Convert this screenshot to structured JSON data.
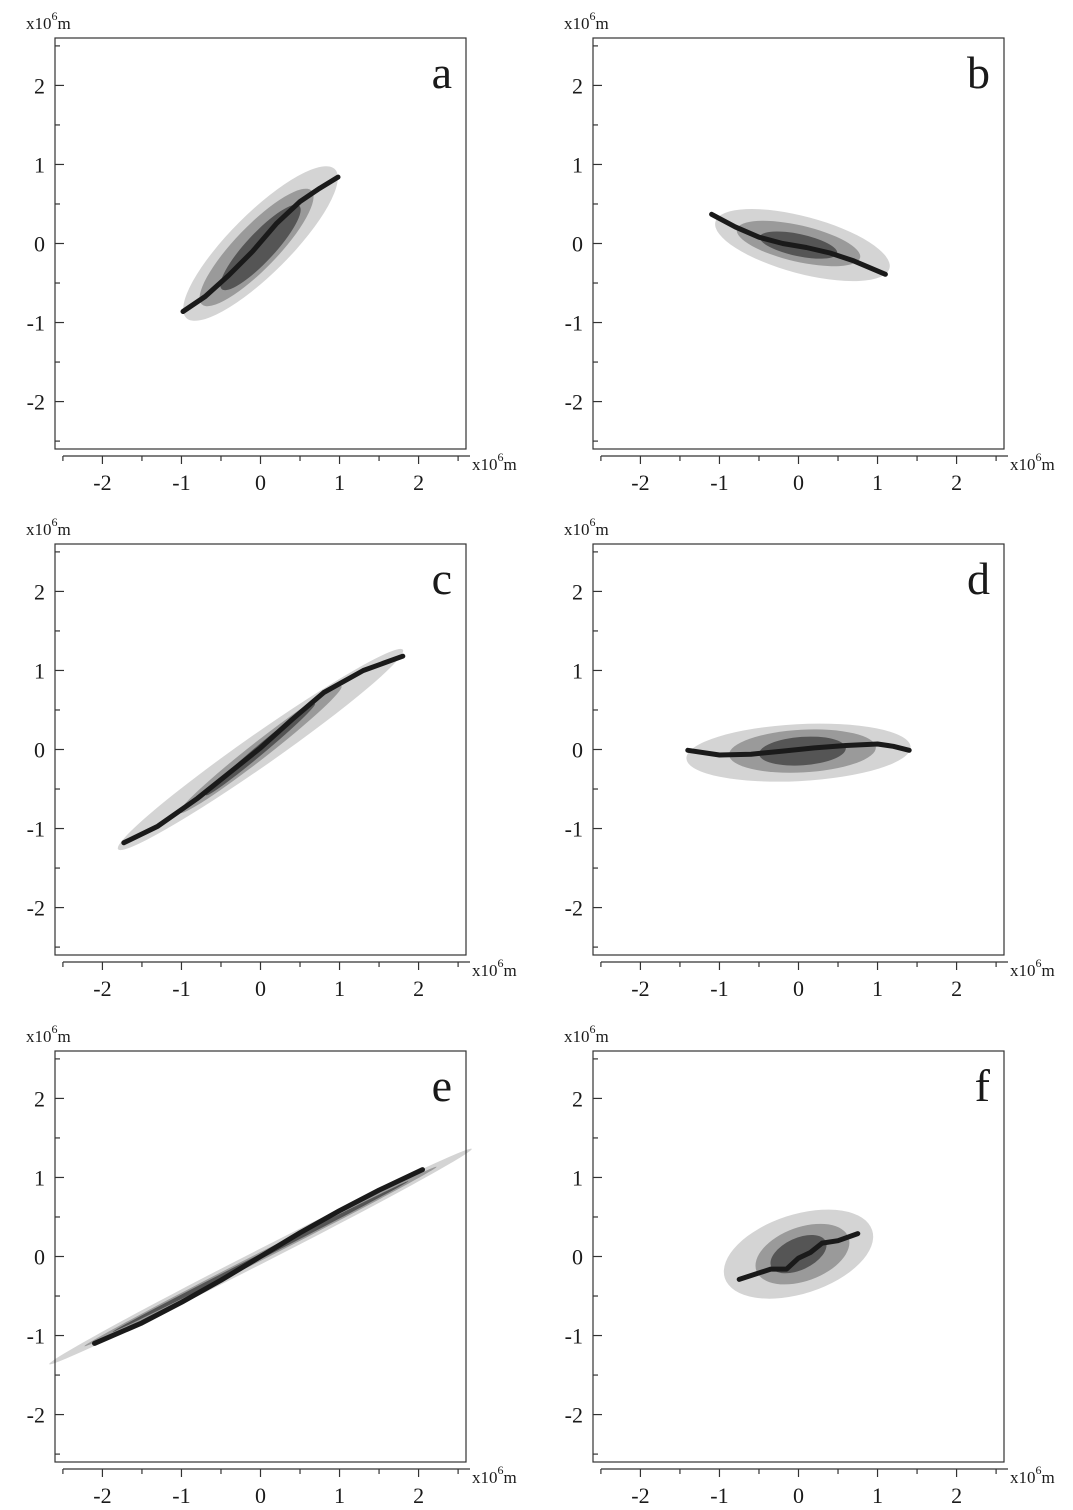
{
  "figure": {
    "x_unit": {
      "prefix": "x10",
      "exponent": "6",
      "suffix": "m"
    },
    "y_unit": {
      "prefix": "x10",
      "exponent": "6",
      "suffix": "m"
    }
  },
  "colors": {
    "background": "#ffffff",
    "frame": "#333333",
    "level_outer": "#d4d4d4",
    "level_middle": "#9a9a9a",
    "level_inner": "#555555",
    "curve": "#1a1a1a"
  },
  "chart_data": [
    {
      "type": "contour",
      "panel": "a",
      "xlim": [
        -2.6,
        2.6
      ],
      "ylim": [
        -2.6,
        2.6
      ],
      "x_ticks": [
        -2,
        -1,
        0,
        1,
        2
      ],
      "y_ticks": [
        -2,
        -1,
        0,
        1,
        2
      ],
      "x_tick_labels": [
        "-2",
        "-1",
        "0",
        "1",
        "2"
      ],
      "y_tick_labels": [
        "-2",
        "-1",
        "0",
        "1",
        "2"
      ],
      "grid": false,
      "contours": [
        {
          "level": "outer",
          "center": [
            0,
            0
          ],
          "semi_major": 1.33,
          "semi_minor": 0.38,
          "angle_deg": 45
        },
        {
          "level": "middle",
          "center": [
            -0.05,
            -0.05
          ],
          "semi_major": 1.0,
          "semi_minor": 0.27,
          "angle_deg": 46
        },
        {
          "level": "inner",
          "center": [
            0,
            -0.05
          ],
          "semi_major": 0.72,
          "semi_minor": 0.18,
          "angle_deg": 47
        }
      ],
      "curve": {
        "x": [
          -0.98,
          -0.7,
          -0.4,
          -0.1,
          0.2,
          0.5,
          0.75,
          0.98
        ],
        "y": [
          -0.86,
          -0.67,
          -0.4,
          -0.1,
          0.25,
          0.53,
          0.7,
          0.84
        ]
      }
    },
    {
      "type": "contour",
      "panel": "b",
      "xlim": [
        -2.6,
        2.6
      ],
      "ylim": [
        -2.6,
        2.6
      ],
      "x_ticks": [
        -2,
        -1,
        0,
        1,
        2
      ],
      "y_ticks": [
        -2,
        -1,
        0,
        1,
        2
      ],
      "x_tick_labels": [
        "-2",
        "-1",
        "0",
        "1",
        "2"
      ],
      "y_tick_labels": [
        "-2",
        "-1",
        "0",
        "1",
        "2"
      ],
      "grid": false,
      "contours": [
        {
          "level": "outer",
          "center": [
            0.05,
            -0.02
          ],
          "semi_major": 1.14,
          "semi_minor": 0.36,
          "angle_deg": -15
        },
        {
          "level": "middle",
          "center": [
            0,
            0
          ],
          "semi_major": 0.8,
          "semi_minor": 0.23,
          "angle_deg": -13
        },
        {
          "level": "inner",
          "center": [
            0,
            -0.02
          ],
          "semi_major": 0.5,
          "semi_minor": 0.14,
          "angle_deg": -12
        }
      ],
      "curve": {
        "x": [
          -1.1,
          -0.8,
          -0.5,
          -0.2,
          0.1,
          0.4,
          0.7,
          1.1
        ],
        "y": [
          0.37,
          0.21,
          0.08,
          0.0,
          -0.05,
          -0.12,
          -0.22,
          -0.39
        ]
      }
    },
    {
      "type": "contour",
      "panel": "c",
      "xlim": [
        -2.6,
        2.6
      ],
      "ylim": [
        -2.6,
        2.6
      ],
      "x_ticks": [
        -2,
        -1,
        0,
        1,
        2
      ],
      "y_ticks": [
        -2,
        -1,
        0,
        1,
        2
      ],
      "x_tick_labels": [
        "-2",
        "-1",
        "0",
        "1",
        "2"
      ],
      "y_tick_labels": [
        "-2",
        "-1",
        "0",
        "1",
        "2"
      ],
      "grid": false,
      "contours": [
        {
          "level": "outer",
          "center": [
            0,
            0
          ],
          "semi_major": 2.2,
          "semi_minor": 0.2,
          "angle_deg": 35
        },
        {
          "level": "middle",
          "center": [
            0,
            0
          ],
          "semi_major": 1.3,
          "semi_minor": 0.11,
          "angle_deg": 38
        },
        {
          "level": "inner",
          "center": [
            0,
            0
          ],
          "semi_major": 0.9,
          "semi_minor": 0.06,
          "angle_deg": 40
        }
      ],
      "curve": {
        "x": [
          -1.73,
          -1.3,
          -0.8,
          -0.4,
          0,
          0.4,
          0.8,
          1.3,
          1.8
        ],
        "y": [
          -1.18,
          -0.97,
          -0.62,
          -0.3,
          0.02,
          0.38,
          0.72,
          1.0,
          1.18
        ]
      }
    },
    {
      "type": "contour",
      "panel": "d",
      "xlim": [
        -2.6,
        2.6
      ],
      "ylim": [
        -2.6,
        2.6
      ],
      "x_ticks": [
        -2,
        -1,
        0,
        1,
        2
      ],
      "y_ticks": [
        -2,
        -1,
        0,
        1,
        2
      ],
      "x_tick_labels": [
        "-2",
        "-1",
        "0",
        "1",
        "2"
      ],
      "y_tick_labels": [
        "-2",
        "-1",
        "0",
        "1",
        "2"
      ],
      "grid": false,
      "contours": [
        {
          "level": "outer",
          "center": [
            0,
            -0.04
          ],
          "semi_major": 1.42,
          "semi_minor": 0.36,
          "angle_deg": 3
        },
        {
          "level": "middle",
          "center": [
            0.05,
            -0.02
          ],
          "semi_major": 0.93,
          "semi_minor": 0.27,
          "angle_deg": 3
        },
        {
          "level": "inner",
          "center": [
            0.05,
            -0.02
          ],
          "semi_major": 0.55,
          "semi_minor": 0.18,
          "angle_deg": 4
        }
      ],
      "curve": {
        "x": [
          -1.4,
          -1.0,
          -0.6,
          -0.2,
          0.2,
          0.6,
          1.0,
          1.2,
          1.4
        ],
        "y": [
          -0.01,
          -0.07,
          -0.06,
          -0.02,
          0.02,
          0.05,
          0.07,
          0.04,
          -0.01
        ]
      }
    },
    {
      "type": "contour",
      "panel": "e",
      "xlim": [
        -2.6,
        2.6
      ],
      "ylim": [
        -2.6,
        2.6
      ],
      "x_ticks": [
        -2,
        -1,
        0,
        1,
        2
      ],
      "y_ticks": [
        -2,
        -1,
        0,
        1,
        2
      ],
      "x_tick_labels": [
        "-2",
        "-1",
        "0",
        "1",
        "2"
      ],
      "y_tick_labels": [
        "-2",
        "-1",
        "0",
        "1",
        "2"
      ],
      "grid": false,
      "contours": [
        {
          "level": "outer",
          "center": [
            0,
            0
          ],
          "semi_major": 3.0,
          "semi_minor": 0.09,
          "angle_deg": 27
        },
        {
          "level": "middle",
          "center": [
            0,
            0
          ],
          "semi_major": 2.5,
          "semi_minor": 0.05,
          "angle_deg": 27
        },
        {
          "level": "inner",
          "center": [
            0,
            0
          ],
          "semi_major": 2.1,
          "semi_minor": 0.03,
          "angle_deg": 27
        }
      ],
      "curve": {
        "x": [
          -2.1,
          -1.5,
          -1.0,
          -0.5,
          0,
          0.5,
          1.0,
          1.5,
          2.05
        ],
        "y": [
          -1.1,
          -0.84,
          -0.58,
          -0.3,
          0.0,
          0.3,
          0.58,
          0.84,
          1.1
        ]
      }
    },
    {
      "type": "contour",
      "panel": "f",
      "xlim": [
        -2.6,
        2.6
      ],
      "ylim": [
        -2.6,
        2.6
      ],
      "x_ticks": [
        -2,
        -1,
        0,
        1,
        2
      ],
      "y_ticks": [
        -2,
        -1,
        0,
        1,
        2
      ],
      "x_tick_labels": [
        "-2",
        "-1",
        "0",
        "1",
        "2"
      ],
      "y_tick_labels": [
        "-2",
        "-1",
        "0",
        "1",
        "2"
      ],
      "grid": false,
      "contours": [
        {
          "level": "outer",
          "center": [
            0,
            0.03
          ],
          "semi_major": 0.98,
          "semi_minor": 0.5,
          "angle_deg": 18
        },
        {
          "level": "middle",
          "center": [
            0.05,
            0.03
          ],
          "semi_major": 0.62,
          "semi_minor": 0.34,
          "angle_deg": 20
        },
        {
          "level": "inner",
          "center": [
            0,
            0.03
          ],
          "semi_major": 0.38,
          "semi_minor": 0.2,
          "angle_deg": 25
        }
      ],
      "curve": {
        "x": [
          -0.75,
          -0.35,
          -0.15,
          0,
          0.15,
          0.3,
          0.5,
          0.75
        ],
        "y": [
          -0.29,
          -0.16,
          -0.16,
          -0.02,
          0.05,
          0.17,
          0.2,
          0.29
        ]
      }
    }
  ]
}
